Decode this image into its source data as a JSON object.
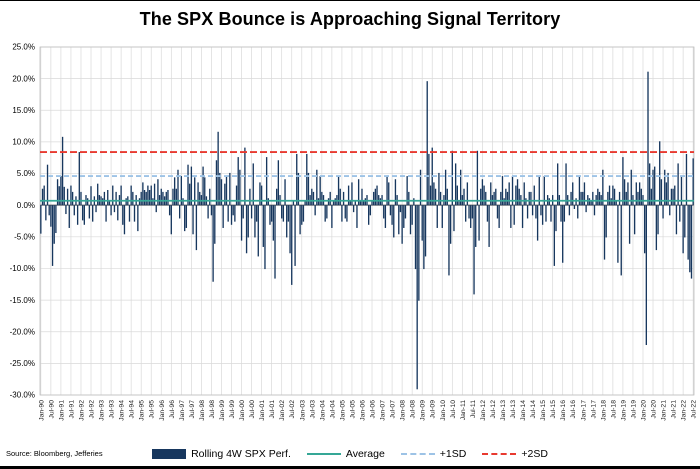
{
  "header": {
    "title": "The SPX Bounce is Approaching Signal Territory"
  },
  "footer": {
    "source": "Source: Bloomberg, Jefferies"
  },
  "legend": [
    {
      "label": "Rolling 4W SPX Perf.",
      "type": "bar",
      "color": "#17375e"
    },
    {
      "label": "Average",
      "type": "line",
      "color": "#35a796"
    },
    {
      "label": "+1SD",
      "type": "dashed",
      "color": "#9dc3e6"
    },
    {
      "label": "+2SD",
      "type": "dashed",
      "color": "#e8392f"
    }
  ],
  "chart_data": {
    "type": "bar",
    "title": "The SPX Bounce is Approaching Signal Territory",
    "unit": "%",
    "ylim": [
      -30,
      25
    ],
    "grid": true,
    "bar_color": "#17375e",
    "grid_color": "#d9d9d9",
    "zero_line_color": "#595959",
    "plot_border_color": "#bfbfbf",
    "y_ticks": [
      25,
      20,
      15,
      10,
      5,
      0,
      -5,
      -10,
      -15,
      -20,
      -25,
      -30
    ],
    "y_tick_labels": [
      "25.0%",
      "20.0%",
      "15.0%",
      "10.0%",
      "5.0%",
      "0.0%",
      "-5.0%",
      "-10.0%",
      "-15.0%",
      "-20.0%",
      "-25.0%",
      "-30.0%"
    ],
    "x_tick_every": 6,
    "x_tick_labels": [
      "Jan-90",
      "Jul-90",
      "Jan-91",
      "Jul-91",
      "Jan-92",
      "Jul-92",
      "Jan-93",
      "Jul-93",
      "Jan-94",
      "Jul-94",
      "Jan-95",
      "Jul-95",
      "Jan-96",
      "Jul-96",
      "Jan-97",
      "Jul-97",
      "Jan-98",
      "Jul-98",
      "Jan-99",
      "Jul-99",
      "Jan-00",
      "Jul-00",
      "Jan-01",
      "Jul-01",
      "Jan-02",
      "Jul-02",
      "Jan-03",
      "Jul-03",
      "Jan-04",
      "Jul-04",
      "Jan-05",
      "Jul-05",
      "Jan-06",
      "Jul-06",
      "Jan-07",
      "Jul-07",
      "Jan-08",
      "Jul-08",
      "Jan-09",
      "Jul-09",
      "Jan-10",
      "Jul-10",
      "Jan-11",
      "Jul-11",
      "Jan-12",
      "Jul-12",
      "Jan-13",
      "Jul-13",
      "Jan-14",
      "Jul-14",
      "Jan-15",
      "Jul-15",
      "Jan-16",
      "Jul-16",
      "Jan-17",
      "Jul-17",
      "Jan-18",
      "Jul-18",
      "Jan-19",
      "Jul-19",
      "Jan-20",
      "Jul-20",
      "Jan-21",
      "Jul-21",
      "Jan-22",
      "Jul-22"
    ],
    "reference_lines": {
      "average": {
        "label": "Average",
        "value": 0.7,
        "color": "#35a796",
        "style": "solid"
      },
      "plus_1sd": {
        "label": "+1SD",
        "value": 4.6,
        "color": "#9dc3e6",
        "style": "dashed"
      },
      "plus_2sd": {
        "label": "+2SD",
        "value": 8.4,
        "color": "#e8392f",
        "style": "dashed"
      }
    },
    "series_name": "Rolling 4W SPX Perf.",
    "values": [
      -4.5,
      2.6,
      3.1,
      -2.4,
      6.4,
      -1.6,
      -3.4,
      -9.6,
      -6.1,
      -4.4,
      4.1,
      3.0,
      4.6,
      10.8,
      2.9,
      -1.4,
      2.6,
      -3.6,
      3.1,
      2.1,
      -1.6,
      1.4,
      -3.1,
      8.4,
      2.1,
      -2.4,
      -3.1,
      1.6,
      1.1,
      -2.1,
      3.0,
      -2.6,
      1.4,
      -1.1,
      3.4,
      1.6,
      1.4,
      1.1,
      2.1,
      -2.6,
      2.4,
      0.6,
      -1.6,
      3.1,
      -1.1,
      2.1,
      -2.4,
      1.6,
      3.1,
      -3.1,
      -4.6,
      1.1,
      1.4,
      -2.6,
      3.1,
      2.1,
      -2.6,
      1.6,
      -4.1,
      1.1,
      2.1,
      3.6,
      2.4,
      2.1,
      3.1,
      2.4,
      3.1,
      1.1,
      3.4,
      -1.1,
      4.1,
      1.6,
      2.6,
      2.1,
      1.4,
      2.1,
      2.4,
      -1.6,
      -4.6,
      2.6,
      4.4,
      2.6,
      5.6,
      -2.1,
      4.6,
      1.1,
      -4.1,
      -3.6,
      6.4,
      3.4,
      6.1,
      -4.6,
      4.4,
      -7.1,
      3.6,
      2.1,
      1.6,
      6.1,
      4.4,
      1.4,
      -2.1,
      2.6,
      -1.6,
      -12.1,
      -6.1,
      7.1,
      11.6,
      5.1,
      4.1,
      -3.6,
      3.4,
      4.6,
      -2.6,
      5.1,
      -3.1,
      -1.6,
      -2.6,
      3.1,
      7.6,
      5.6,
      -5.6,
      -2.1,
      9.1,
      -7.6,
      -5.1,
      2.6,
      -2.1,
      6.6,
      -5.1,
      -2.6,
      -8.1,
      3.6,
      3.1,
      -6.6,
      -10.1,
      7.6,
      1.1,
      -3.1,
      -2.6,
      -5.6,
      -11.6,
      2.6,
      7.1,
      1.6,
      -2.1,
      -2.6,
      4.1,
      -5.1,
      -2.6,
      -7.6,
      -12.6,
      0.6,
      -9.6,
      8.1,
      5.1,
      -4.6,
      -3.1,
      -2.6,
      0.6,
      8.1,
      5.1,
      1.6,
      2.6,
      2.1,
      -1.6,
      5.6,
      1.1,
      4.6,
      2.1,
      1.6,
      -2.6,
      -2.1,
      1.1,
      2.1,
      -3.6,
      0.6,
      1.1,
      1.6,
      4.6,
      2.6,
      -2.6,
      2.1,
      -2.1,
      -2.6,
      3.1,
      0.6,
      3.6,
      -1.1,
      0.6,
      -3.6,
      4.1,
      0.6,
      2.6,
      0.6,
      1.1,
      1.6,
      -3.1,
      -1.6,
      0.6,
      2.1,
      2.6,
      3.1,
      1.6,
      1.1,
      1.6,
      -2.1,
      -3.6,
      4.6,
      3.6,
      -1.6,
      -3.1,
      -5.1,
      4.1,
      1.6,
      -4.6,
      -1.1,
      -6.1,
      -3.6,
      -2.1,
      4.6,
      2.1,
      -4.6,
      -3.1,
      1.1,
      -10.1,
      -29.1,
      -15.1,
      5.6,
      -5.6,
      -10.1,
      -8.1,
      19.6,
      8.1,
      3.1,
      9.1,
      3.6,
      2.6,
      -3.6,
      5.1,
      2.1,
      -3.6,
      1.6,
      5.6,
      2.6,
      -11.1,
      -6.1,
      8.6,
      -4.1,
      6.6,
      3.1,
      0.6,
      5.6,
      1.6,
      2.6,
      -2.6,
      3.6,
      -2.1,
      -3.6,
      -2.1,
      -14.1,
      -6.6,
      8.6,
      -5.6,
      2.6,
      4.1,
      3.1,
      2.1,
      -2.6,
      -6.6,
      3.6,
      1.6,
      2.1,
      2.6,
      -2.1,
      -3.6,
      2.1,
      4.6,
      1.1,
      2.6,
      2.1,
      3.6,
      -3.6,
      4.6,
      -3.1,
      3.1,
      4.1,
      2.6,
      1.6,
      -3.6,
      3.6,
      1.1,
      -2.1,
      2.1,
      2.1,
      -1.6,
      3.1,
      -2.1,
      -5.6,
      4.6,
      -1.6,
      -3.1,
      4.6,
      -2.6,
      1.6,
      1.1,
      -2.6,
      1.6,
      -9.6,
      -4.1,
      6.6,
      1.6,
      -2.6,
      -9.1,
      -2.6,
      6.6,
      1.6,
      -1.6,
      2.1,
      3.6,
      -0.6,
      1.1,
      -2.1,
      4.6,
      2.1,
      2.1,
      3.6,
      -1.1,
      1.6,
      1.1,
      0.6,
      2.1,
      -1.6,
      1.6,
      2.6,
      2.1,
      1.6,
      5.6,
      -8.6,
      -5.1,
      2.1,
      3.1,
      1.1,
      3.1,
      2.6,
      0.6,
      -9.1,
      2.1,
      -11.1,
      7.6,
      4.1,
      2.1,
      3.6,
      -6.1,
      5.6,
      1.6,
      -4.6,
      3.6,
      2.1,
      3.6,
      2.6,
      1.6,
      -7.6,
      -22.1,
      21.1,
      6.6,
      2.6,
      5.6,
      6.1,
      -7.1,
      -4.6,
      10.1,
      4.1,
      -2.1,
      5.6,
      3.6,
      5.1,
      -1.6,
      2.6,
      2.6,
      3.1,
      -4.6,
      6.6,
      -2.6,
      4.6,
      -7.6,
      -5.1,
      8.1,
      -8.6,
      -10.6,
      -11.6,
      7.4
    ]
  }
}
